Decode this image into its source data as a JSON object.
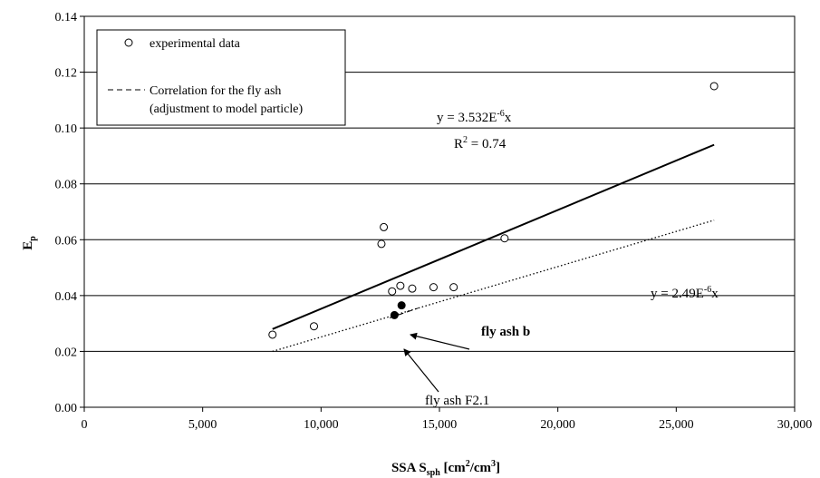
{
  "chart_data": {
    "type": "scatter",
    "xlabel": {
      "main": "SSA  S",
      "sub": "sph",
      "bracket_open": " [cm",
      "sup1": "2",
      "slash": "/cm",
      "sup2": "3",
      "bracket_close": "]"
    },
    "ylabel": {
      "main": "E",
      "sub": "p"
    },
    "xlim": [
      0,
      30000
    ],
    "ylim": [
      0.0,
      0.14
    ],
    "x_ticks": [
      0,
      5000,
      10000,
      15000,
      20000,
      25000,
      30000
    ],
    "x_tick_labels": [
      "0",
      "5,000",
      "10,000",
      "15,000",
      "20,000",
      "25,000",
      "30,000"
    ],
    "y_ticks": [
      0.0,
      0.02,
      0.04,
      0.06,
      0.08,
      0.1,
      0.12,
      0.14
    ],
    "y_tick_labels": [
      "0.00",
      "0.02",
      "0.04",
      "0.06",
      "0.08",
      "0.10",
      "0.12",
      "0.14"
    ],
    "grid": "horizontal",
    "legend_position": "top-left",
    "legend": [
      {
        "marker": "open-circle",
        "label": "experimental data"
      },
      {
        "marker": "dashed-line",
        "label_line1": "Correlation for the fly ash",
        "label_line2": "(adjustment to model particle)"
      }
    ],
    "series": [
      {
        "name": "experimental data",
        "marker": "open-circle",
        "points": [
          {
            "x": 7950,
            "y": 0.026
          },
          {
            "x": 9700,
            "y": 0.029
          },
          {
            "x": 12550,
            "y": 0.0585
          },
          {
            "x": 12650,
            "y": 0.0645
          },
          {
            "x": 13000,
            "y": 0.0415
          },
          {
            "x": 13350,
            "y": 0.0435
          },
          {
            "x": 13850,
            "y": 0.0425
          },
          {
            "x": 14750,
            "y": 0.043
          },
          {
            "x": 15600,
            "y": 0.043
          },
          {
            "x": 17750,
            "y": 0.0605
          },
          {
            "x": 26600,
            "y": 0.115
          }
        ]
      },
      {
        "marker": "filled-circle",
        "points": [
          {
            "x": 13100,
            "y": 0.033
          },
          {
            "x": 13400,
            "y": 0.0365
          }
        ]
      }
    ],
    "trend_lines": [
      {
        "style": "solid",
        "x": [
          7950,
          26600
        ],
        "y": [
          0.028,
          0.094
        ]
      },
      {
        "style": "dotted",
        "x": [
          7950,
          26600
        ],
        "y": [
          0.02,
          0.067
        ]
      },
      {
        "style": "dashed",
        "x": [
          12900,
          14100
        ],
        "y": [
          0.032,
          0.0355
        ]
      }
    ],
    "annotations": {
      "eq1": {
        "text_prefix": "y = 3.532E",
        "text_sup": "-6",
        "text_suffix": "x"
      },
      "r2": {
        "text_prefix": "R",
        "text_sup": "2",
        "text_suffix": " = 0.74"
      },
      "eq2": {
        "text_prefix": "y = 2.49E",
        "text_sup": "-6",
        "text_suffix": "x"
      },
      "fly_ash_b": "fly ash b",
      "fly_ash_f21": "fly ash F2.1"
    }
  }
}
